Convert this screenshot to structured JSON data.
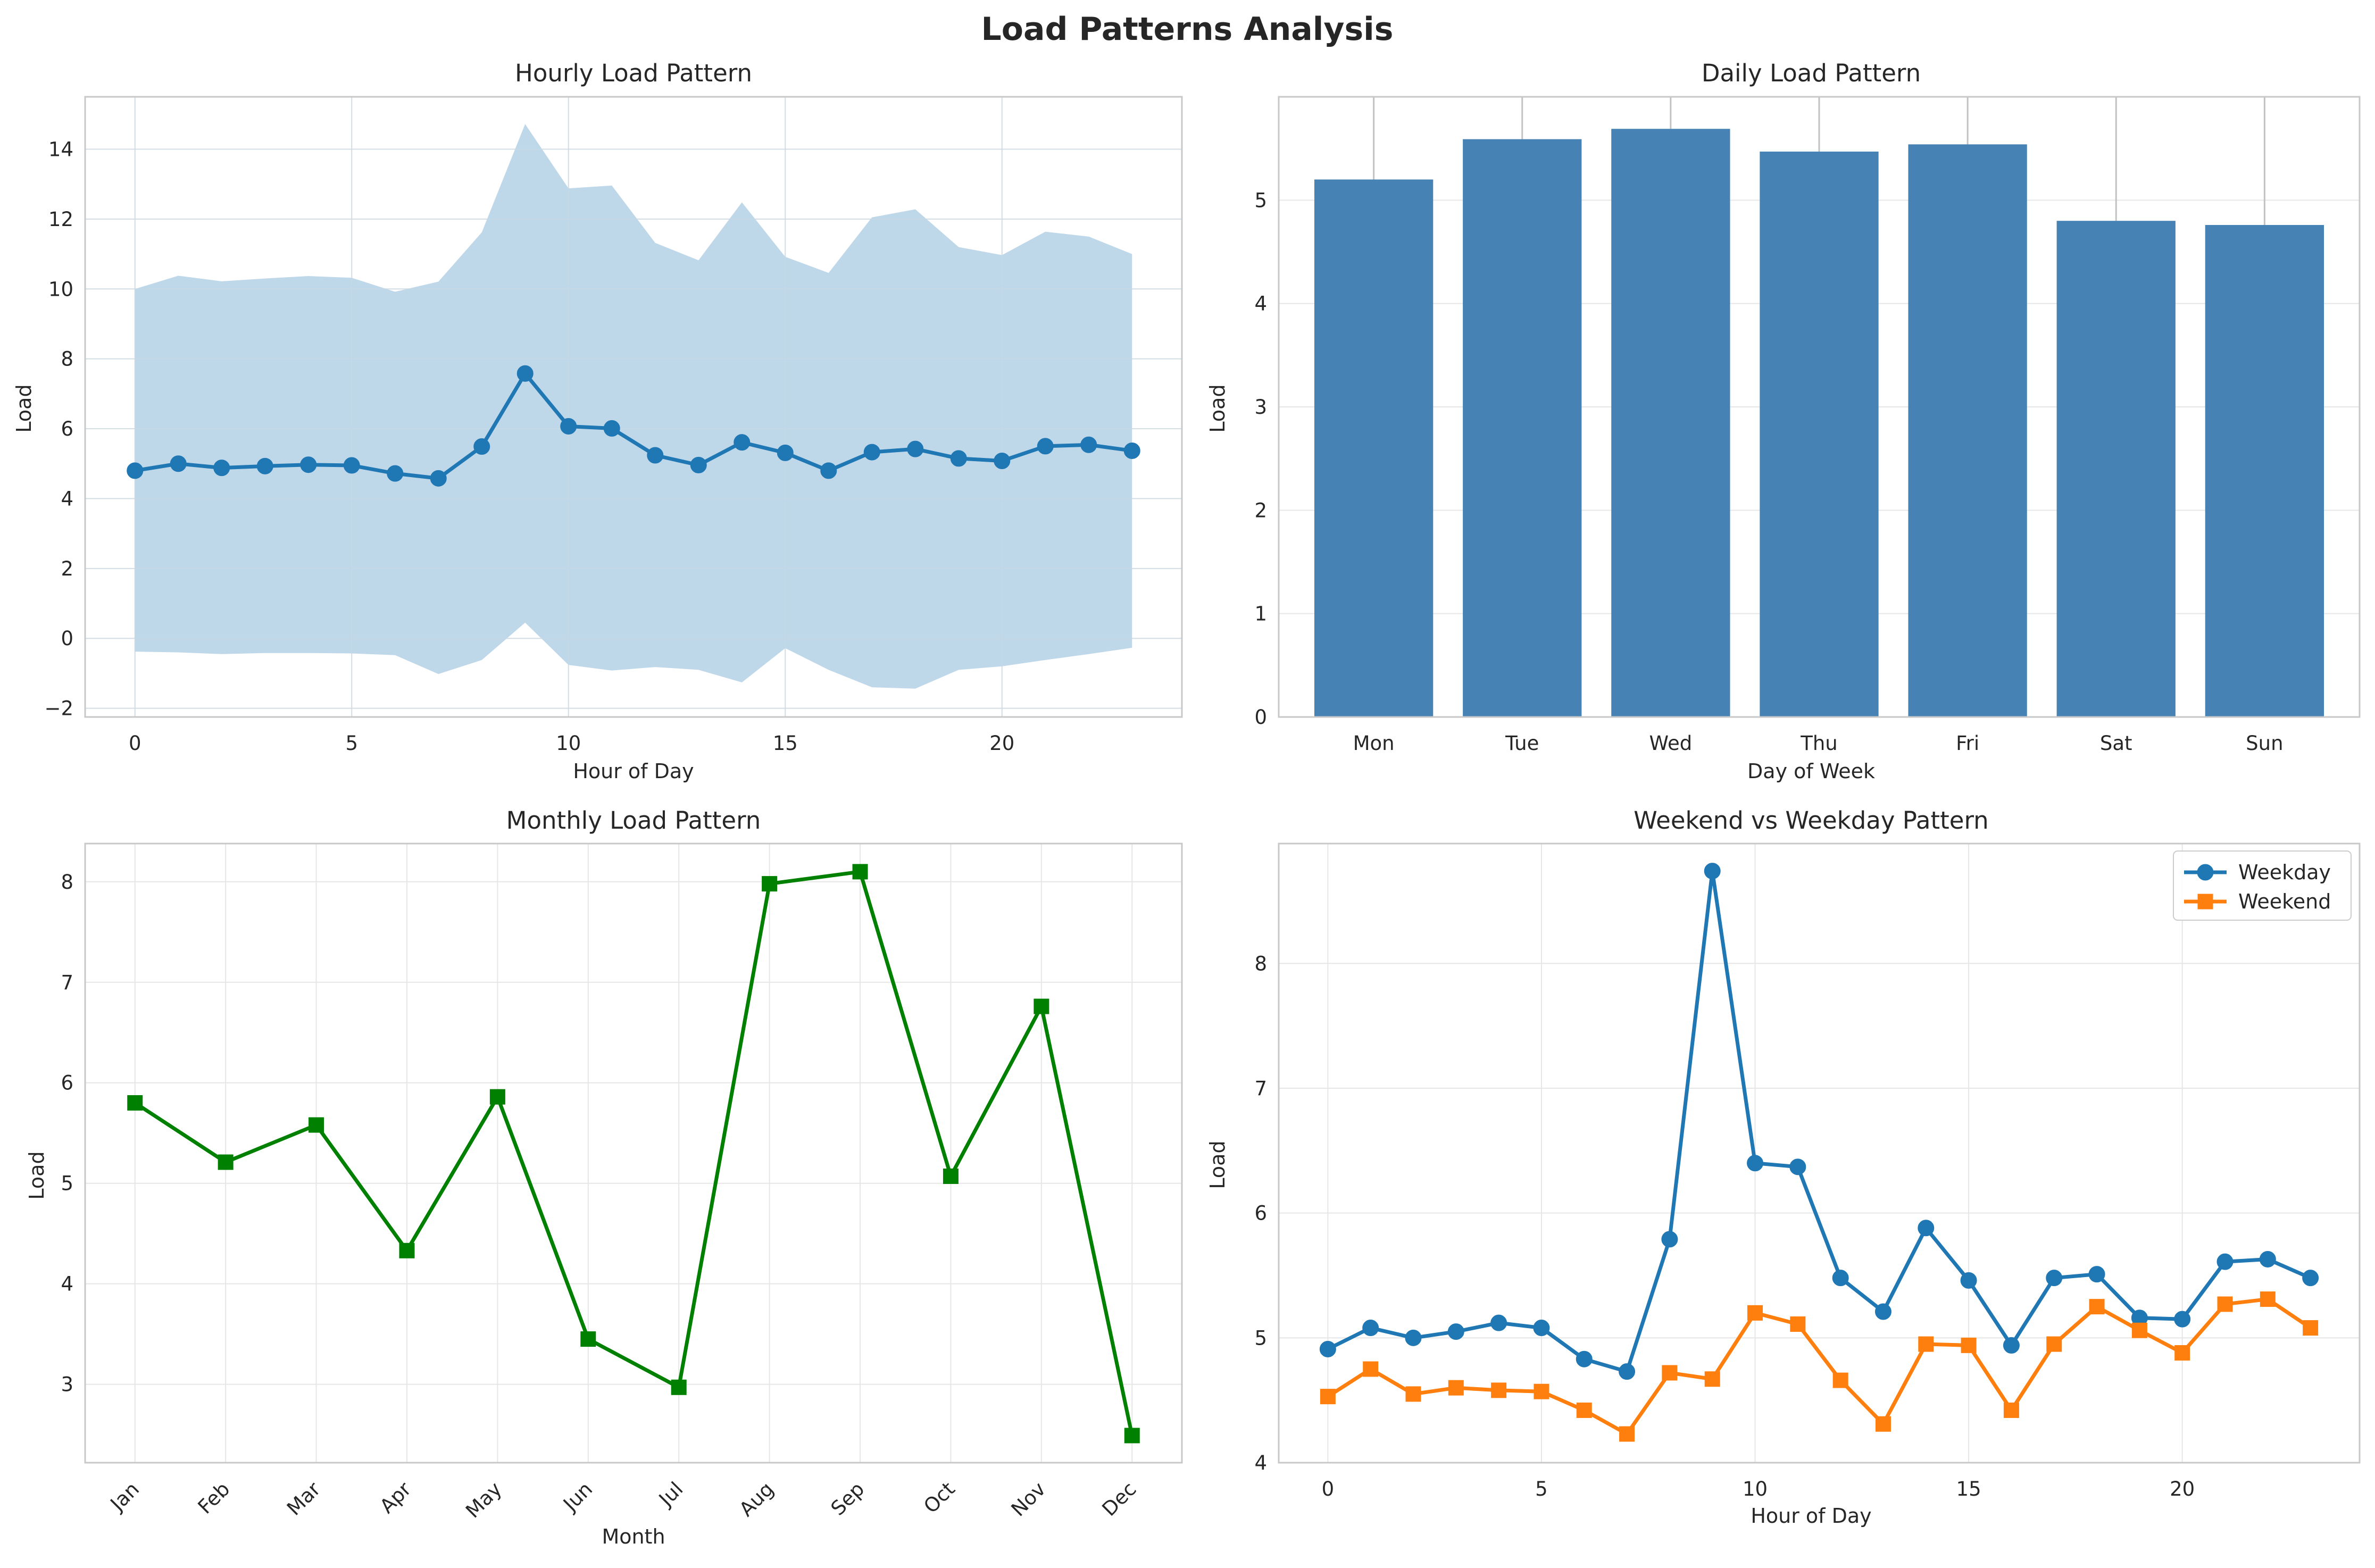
{
  "figure": {
    "title": "Load Patterns Analysis"
  },
  "colors": {
    "blue": "#1f77b4",
    "band": "#bad5e8",
    "steelblue": "#4682b4",
    "green": "#008000",
    "orange": "#ff7f0e",
    "frame": "#c8c8c8",
    "grid": "#e6e6e6"
  },
  "chart_data": [
    {
      "id": "hourly",
      "type": "line",
      "title": "Hourly Load Pattern",
      "xlabel": "Hour of Day",
      "ylabel": "Load",
      "xlim": [
        -1.15,
        24.15
      ],
      "ylim": [
        -2.25,
        15.5
      ],
      "xticks": [
        0,
        5,
        10,
        15,
        20
      ],
      "yticks": [
        -2,
        0,
        2,
        4,
        6,
        8,
        10,
        12,
        14
      ],
      "ytick_labels": [
        "−2",
        "0",
        "2",
        "4",
        "6",
        "8",
        "10",
        "12",
        "14"
      ],
      "grid": true,
      "x": [
        0,
        1,
        2,
        3,
        4,
        5,
        6,
        7,
        8,
        9,
        10,
        11,
        12,
        13,
        14,
        15,
        16,
        17,
        18,
        19,
        20,
        21,
        22,
        23
      ],
      "series": [
        {
          "values": [
            4.8,
            5.0,
            4.88,
            4.93,
            4.97,
            4.95,
            4.72,
            4.58,
            5.49,
            7.58,
            6.07,
            6.01,
            5.24,
            4.96,
            5.61,
            5.31,
            4.8,
            5.33,
            5.42,
            5.15,
            5.08,
            5.5,
            5.54,
            5.37
          ],
          "marker": "circle",
          "color": "#1f77b4"
        }
      ],
      "band": {
        "upper": [
          10.0,
          10.38,
          10.22,
          10.3,
          10.37,
          10.32,
          9.92,
          10.21,
          11.62,
          14.72,
          12.88,
          12.96,
          11.32,
          10.82,
          12.48,
          10.92,
          10.46,
          12.05,
          12.28,
          11.2,
          10.97,
          11.64,
          11.5,
          11.0
        ],
        "lower": [
          -0.38,
          -0.4,
          -0.45,
          -0.42,
          -0.42,
          -0.43,
          -0.48,
          -1.02,
          -0.62,
          0.45,
          -0.76,
          -0.92,
          -0.82,
          -0.9,
          -1.26,
          -0.28,
          -0.9,
          -1.4,
          -1.44,
          -0.9,
          -0.8,
          -0.62,
          -0.45,
          -0.27
        ]
      }
    },
    {
      "id": "daily",
      "type": "bar",
      "title": "Daily Load Pattern",
      "xlabel": "Day of Week",
      "ylabel": "Load",
      "ylim": [
        0,
        6.0
      ],
      "yticks": [
        0,
        1,
        2,
        3,
        4,
        5
      ],
      "grid": true,
      "categories": [
        "Mon",
        "Tue",
        "Wed",
        "Thu",
        "Fri",
        "Sat",
        "Sun"
      ],
      "values": [
        5.2,
        5.59,
        5.69,
        5.47,
        5.54,
        4.8,
        4.76
      ],
      "errors": [
        1.8,
        1.85,
        1.85,
        1.8,
        1.9,
        1.8,
        1.75
      ],
      "color": "#4682b4"
    },
    {
      "id": "monthly",
      "type": "line",
      "title": "Monthly Load Pattern",
      "xlabel": "Month",
      "ylabel": "Load",
      "ylim": [
        2.22,
        8.38
      ],
      "yticks": [
        3,
        4,
        5,
        6,
        7,
        8
      ],
      "grid": true,
      "categories": [
        "Jan",
        "Feb",
        "Mar",
        "Apr",
        "May",
        "Jun",
        "Jul",
        "Aug",
        "Sep",
        "Oct",
        "Nov",
        "Dec"
      ],
      "series": [
        {
          "values": [
            5.8,
            5.21,
            5.58,
            4.33,
            5.86,
            3.45,
            2.97,
            7.98,
            8.1,
            5.07,
            6.76,
            2.49
          ],
          "marker": "square",
          "color": "#008000"
        }
      ]
    },
    {
      "id": "weekend",
      "type": "line",
      "title": "Weekend vs Weekday Pattern",
      "xlabel": "Hour of Day",
      "ylabel": "Load",
      "xlim": [
        -1.15,
        24.15
      ],
      "ylim": [
        4.0,
        8.96
      ],
      "xticks": [
        0,
        5,
        10,
        15,
        20
      ],
      "yticks": [
        4,
        5,
        6,
        7,
        8
      ],
      "grid": true,
      "legend": "top-right",
      "x": [
        0,
        1,
        2,
        3,
        4,
        5,
        6,
        7,
        8,
        9,
        10,
        11,
        12,
        13,
        14,
        15,
        16,
        17,
        18,
        19,
        20,
        21,
        22,
        23
      ],
      "series": [
        {
          "name": "Weekday",
          "values": [
            4.91,
            5.08,
            5.0,
            5.05,
            5.12,
            5.08,
            4.83,
            4.73,
            5.79,
            8.74,
            6.4,
            6.37,
            5.48,
            5.21,
            5.88,
            5.46,
            4.94,
            5.48,
            5.51,
            5.16,
            5.15,
            5.61,
            5.63,
            5.48
          ],
          "marker": "circle",
          "color": "#1f77b4"
        },
        {
          "name": "Weekend",
          "values": [
            4.53,
            4.75,
            4.55,
            4.6,
            4.58,
            4.57,
            4.42,
            4.23,
            4.72,
            4.67,
            5.2,
            5.11,
            4.66,
            4.31,
            4.95,
            4.94,
            4.42,
            4.95,
            5.25,
            5.06,
            4.88,
            5.27,
            5.31,
            5.08
          ],
          "marker": "square",
          "color": "#ff7f0e"
        }
      ]
    }
  ]
}
